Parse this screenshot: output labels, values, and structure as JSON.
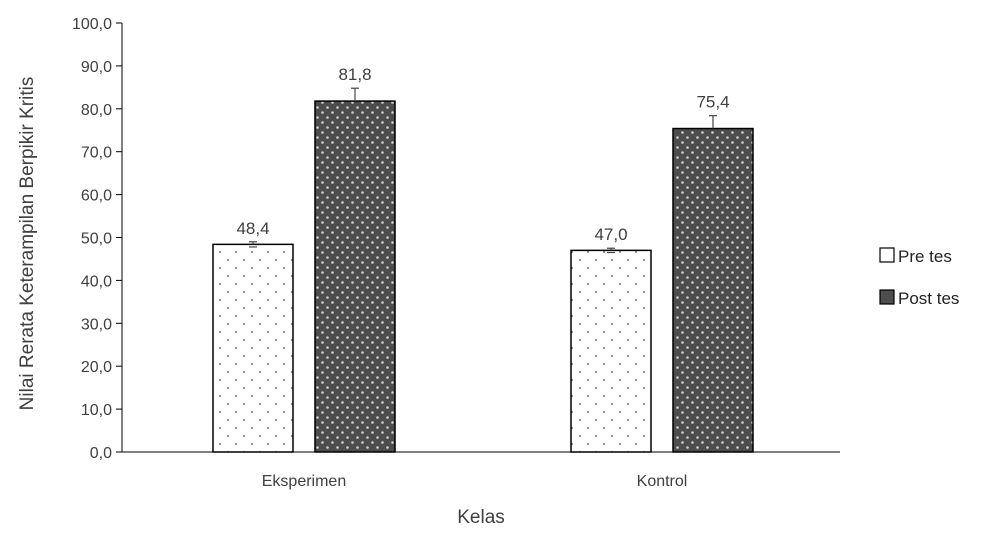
{
  "chart_data": {
    "type": "bar",
    "categories": [
      "Eksperimen",
      "Kontrol"
    ],
    "series": [
      {
        "name": "Pre tes",
        "values": [
          48.4,
          47.0
        ],
        "value_labels": [
          "48,4",
          "47,0"
        ],
        "error": [
          0.6,
          0.5
        ],
        "fill": "#ffffff",
        "dot_color": "#8a8a8a"
      },
      {
        "name": "Post tes",
        "values": [
          81.8,
          75.4
        ],
        "value_labels": [
          "81,8",
          "75,4"
        ],
        "error": [
          3.0,
          3.0
        ],
        "fill": "#4d4d4d",
        "dot_color": "#cfcfcf"
      }
    ],
    "xlabel": "Kelas",
    "ylabel": "Nilai Rerata Keterampilan Berpikir Kritis",
    "ylim": [
      0,
      100
    ],
    "yticks": [
      0,
      10,
      20,
      30,
      40,
      50,
      60,
      70,
      80,
      90,
      100
    ],
    "ytick_labels": [
      "0,0",
      "10,0",
      "20,0",
      "30,0",
      "40,0",
      "50,0",
      "60,0",
      "70,0",
      "80,0",
      "90,0",
      "100,0"
    ],
    "grid": false,
    "legend_position": "right",
    "bar_outline_color": "#000000",
    "axis_color": "#000000"
  }
}
